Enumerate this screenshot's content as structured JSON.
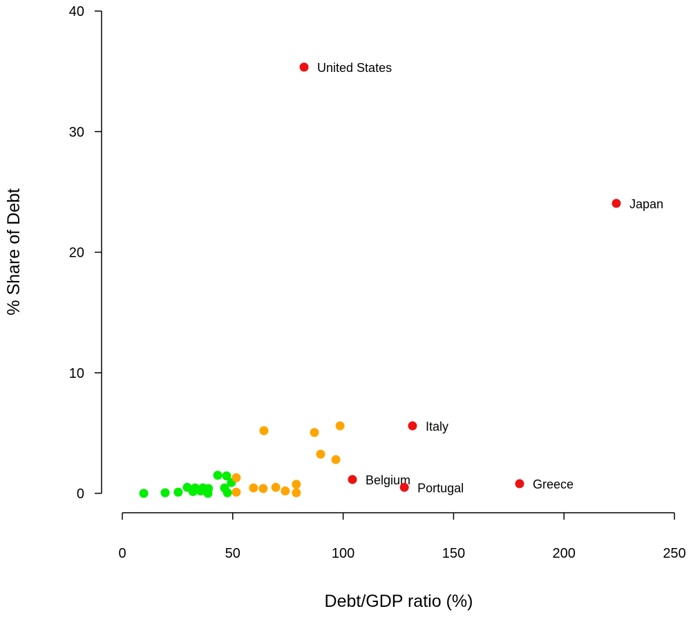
{
  "chart_data": {
    "type": "scatter",
    "xlabel": "Debt/GDP ratio (%)",
    "ylabel": "% Share of Debt",
    "xlim": [
      0,
      250
    ],
    "ylim": [
      0,
      40
    ],
    "xticks": [
      0,
      50,
      100,
      150,
      200,
      250
    ],
    "yticks": [
      0,
      10,
      20,
      30,
      40
    ],
    "grid": false,
    "colors": {
      "green": "#00ee00",
      "orange": "#ffa500",
      "red": "#ee1111"
    },
    "points": [
      {
        "x": 9.7,
        "y": 0.0,
        "color": "green"
      },
      {
        "x": 19.4,
        "y": 0.05,
        "color": "green"
      },
      {
        "x": 25.3,
        "y": 0.1,
        "color": "green"
      },
      {
        "x": 29.4,
        "y": 0.5,
        "color": "green"
      },
      {
        "x": 32.0,
        "y": 0.15,
        "color": "green"
      },
      {
        "x": 33.0,
        "y": 0.45,
        "color": "green"
      },
      {
        "x": 35.4,
        "y": 0.2,
        "color": "green"
      },
      {
        "x": 36.5,
        "y": 0.45,
        "color": "green"
      },
      {
        "x": 38.8,
        "y": 0.0,
        "color": "green"
      },
      {
        "x": 39.0,
        "y": 0.4,
        "color": "green"
      },
      {
        "x": 43.2,
        "y": 1.5,
        "color": "green"
      },
      {
        "x": 46.3,
        "y": 0.45,
        "color": "green"
      },
      {
        "x": 47.2,
        "y": 1.45,
        "color": "green"
      },
      {
        "x": 47.6,
        "y": 0.05,
        "color": "green"
      },
      {
        "x": 49.4,
        "y": 0.9,
        "color": "green"
      },
      {
        "x": 51.6,
        "y": 1.3,
        "color": "orange"
      },
      {
        "x": 51.6,
        "y": 0.1,
        "color": "orange"
      },
      {
        "x": 59.4,
        "y": 0.45,
        "color": "orange"
      },
      {
        "x": 63.8,
        "y": 0.4,
        "color": "orange"
      },
      {
        "x": 69.5,
        "y": 0.5,
        "color": "orange"
      },
      {
        "x": 73.8,
        "y": 0.2,
        "color": "orange"
      },
      {
        "x": 78.8,
        "y": 0.75,
        "color": "orange"
      },
      {
        "x": 78.8,
        "y": 0.05,
        "color": "orange"
      },
      {
        "x": 64.1,
        "y": 5.2,
        "color": "orange"
      },
      {
        "x": 87.0,
        "y": 5.05,
        "color": "orange"
      },
      {
        "x": 89.8,
        "y": 3.25,
        "color": "orange"
      },
      {
        "x": 96.7,
        "y": 2.8,
        "color": "orange"
      },
      {
        "x": 98.6,
        "y": 5.6,
        "color": "orange"
      },
      {
        "x": 82.3,
        "y": 35.35,
        "color": "red",
        "label": "United States"
      },
      {
        "x": 223.7,
        "y": 24.05,
        "color": "red",
        "label": "Japan"
      },
      {
        "x": 131.4,
        "y": 5.6,
        "color": "red",
        "label": "Italy"
      },
      {
        "x": 104.2,
        "y": 1.15,
        "color": "red",
        "label": "Belgium"
      },
      {
        "x": 127.7,
        "y": 0.5,
        "color": "red",
        "label": "Portugal"
      },
      {
        "x": 179.9,
        "y": 0.8,
        "color": "red",
        "label": "Greece"
      }
    ]
  }
}
